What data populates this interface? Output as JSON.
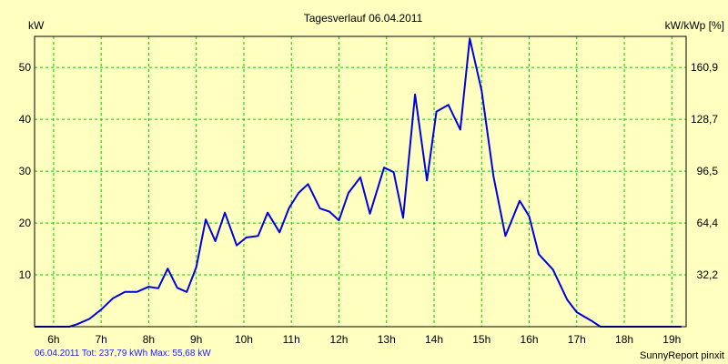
{
  "colors": {
    "background": "#ffffc0",
    "plot_background": "#ffffc0",
    "grid": "#00cc00",
    "series": "#0000e0",
    "footer_text": "#1a1aff"
  },
  "footer": {
    "left_text": "06.04.2011 Tot: 237,79 kWh Max: 55,68 kW",
    "right_text": "SunnyReport pinxit"
  },
  "chart_data": {
    "type": "line",
    "title": "Tagesverlauf 06.04.2011",
    "ylabel": "kW",
    "y2label": "kW/kWp [%]",
    "xlim": [
      5.6,
      19.3
    ],
    "ylim": [
      0,
      56
    ],
    "grid": true,
    "x_ticks": [
      6,
      7,
      8,
      9,
      10,
      11,
      12,
      13,
      14,
      15,
      16,
      17,
      18,
      19
    ],
    "x_tick_labels": [
      "6h",
      "7h",
      "8h",
      "9h",
      "10h",
      "11h",
      "12h",
      "13h",
      "14h",
      "15h",
      "16h",
      "17h",
      "18h",
      "19h"
    ],
    "y_ticks": [
      10,
      20,
      30,
      40,
      50
    ],
    "y_tick_labels": [
      "10",
      "20",
      "30",
      "40",
      "50"
    ],
    "y2_ticks": [
      10,
      20,
      30,
      40,
      50
    ],
    "y2_tick_labels": [
      "32,2",
      "64,4",
      "96,5",
      "128,7",
      "160,9"
    ],
    "series": [
      {
        "name": "kW",
        "x": [
          5.6,
          6.33,
          6.5,
          6.75,
          7.0,
          7.25,
          7.5,
          7.75,
          8.0,
          8.2,
          8.4,
          8.6,
          8.8,
          9.0,
          9.2,
          9.4,
          9.6,
          9.85,
          10.05,
          10.3,
          10.5,
          10.75,
          10.95,
          11.15,
          11.35,
          11.6,
          11.8,
          12.0,
          12.2,
          12.45,
          12.65,
          12.95,
          13.15,
          13.35,
          13.6,
          13.85,
          14.05,
          14.3,
          14.55,
          14.75,
          15.0,
          15.25,
          15.5,
          15.8,
          16.0,
          16.2,
          16.5,
          16.8,
          17.0,
          17.3,
          17.5,
          17.75,
          18.0,
          18.2,
          18.45,
          18.7,
          18.95,
          19.2
        ],
        "y": [
          0,
          0,
          0.5,
          1.5,
          3.3,
          5.5,
          6.7,
          6.7,
          7.7,
          7.4,
          11.2,
          7.5,
          6.7,
          11.5,
          20.7,
          16.5,
          22.0,
          15.7,
          17.2,
          17.5,
          22.0,
          18.2,
          22.9,
          25.8,
          27.5,
          22.8,
          22.2,
          20.5,
          25.8,
          28.8,
          21.8,
          30.7,
          29.8,
          21.0,
          44.8,
          28.2,
          41.5,
          42.8,
          38.0,
          55.6,
          45.5,
          29.0,
          17.5,
          24.3,
          21.3,
          14.0,
          11.0,
          5.2,
          2.8,
          1.2,
          0,
          0,
          0,
          0,
          0,
          0,
          0,
          0
        ]
      }
    ]
  }
}
